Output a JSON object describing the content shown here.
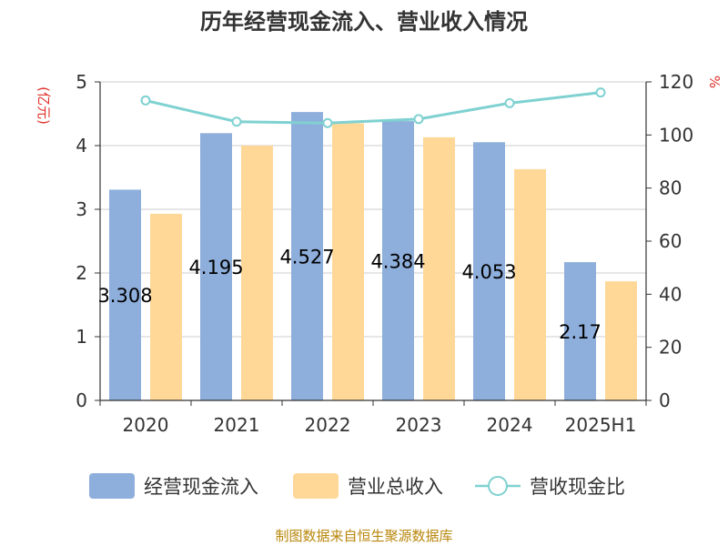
{
  "chart_data": {
    "type": "bar",
    "title": "历年经营现金流入、营业收入情况",
    "categories": [
      "2020",
      "2021",
      "2022",
      "2023",
      "2024",
      "2025H1"
    ],
    "ylabel_left_unit": "(亿元)",
    "ylabel_right_unit": "%",
    "ylim_left": [
      0,
      5
    ],
    "ylim_right": [
      0,
      120
    ],
    "left_ticks": [
      "0",
      "1",
      "2",
      "3",
      "4",
      "5"
    ],
    "right_ticks": [
      "0",
      "20",
      "40",
      "60",
      "80",
      "100",
      "120"
    ],
    "grid": true,
    "legend_position": "bottom",
    "series": [
      {
        "name": "经营现金流入",
        "type": "bar",
        "axis": "left",
        "color": "#8eaedb",
        "values": [
          3.308,
          4.195,
          4.527,
          4.384,
          4.053,
          2.17
        ],
        "labels": [
          "3.308",
          "4.195",
          "4.527",
          "4.384",
          "4.053",
          "2.17"
        ]
      },
      {
        "name": "营业总收入",
        "type": "bar",
        "axis": "left",
        "color": "#ffd898",
        "values": [
          2.93,
          4.0,
          4.35,
          4.13,
          3.63,
          1.87
        ]
      },
      {
        "name": "营收现金比",
        "type": "line",
        "axis": "right",
        "color": "#7fd1d1",
        "values": [
          113,
          105,
          104.5,
          106,
          112,
          116
        ]
      }
    ]
  },
  "source_text": "制图数据来自恒生聚源数据库"
}
